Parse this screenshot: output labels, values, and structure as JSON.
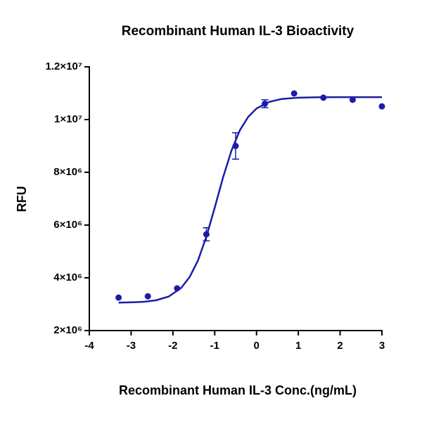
{
  "chart_data": {
    "type": "scatter",
    "title": "Recombinant Human IL-3 Bioactivity",
    "xlabel": "Recombinant Human IL-3 Conc.(ng/mL)",
    "ylabel": "RFU",
    "color": "#1c1ca8",
    "x": [
      -3.3,
      -2.6,
      -1.9,
      -1.2,
      -0.5,
      0.2,
      0.9,
      1.6,
      2.3,
      3.0
    ],
    "values": [
      3250000,
      3300000,
      3600000,
      5650000,
      9000000,
      10600000,
      10990000,
      10830000,
      10750000,
      10500000
    ],
    "errors": [
      null,
      null,
      null,
      250000,
      500000,
      150000,
      null,
      null,
      null,
      null
    ],
    "curve": {
      "x": [
        -3.3,
        -3.0,
        -2.7,
        -2.4,
        -2.1,
        -1.8,
        -1.6,
        -1.4,
        -1.2,
        -1.0,
        -0.8,
        -0.6,
        -0.4,
        -0.2,
        0,
        0.3,
        0.6,
        1.0,
        1.5,
        2.0,
        2.5,
        3.0
      ],
      "values": [
        3060000,
        3070000,
        3090000,
        3150000,
        3290000,
        3620000,
        4030000,
        4660000,
        5560000,
        6660000,
        7810000,
        8820000,
        9590000,
        10100000,
        10420000,
        10670000,
        10780000,
        10830000,
        10845000,
        10850000,
        10850000,
        10850000
      ]
    },
    "xlim": [
      -4,
      3
    ],
    "xticks": [
      -4,
      -3,
      -2,
      -1,
      0,
      1,
      2,
      3
    ],
    "ylim": [
      2000000,
      12000000
    ],
    "yticks": [
      {
        "value": 2000000,
        "label": "2×10⁶"
      },
      {
        "value": 4000000,
        "label": "4×10⁶"
      },
      {
        "value": 6000000,
        "label": "6×10⁶"
      },
      {
        "value": 8000000,
        "label": "8×10⁶"
      },
      {
        "value": 10000000,
        "label": "1×10⁷"
      },
      {
        "value": 12000000,
        "label": "1.2×10⁷"
      }
    ]
  }
}
